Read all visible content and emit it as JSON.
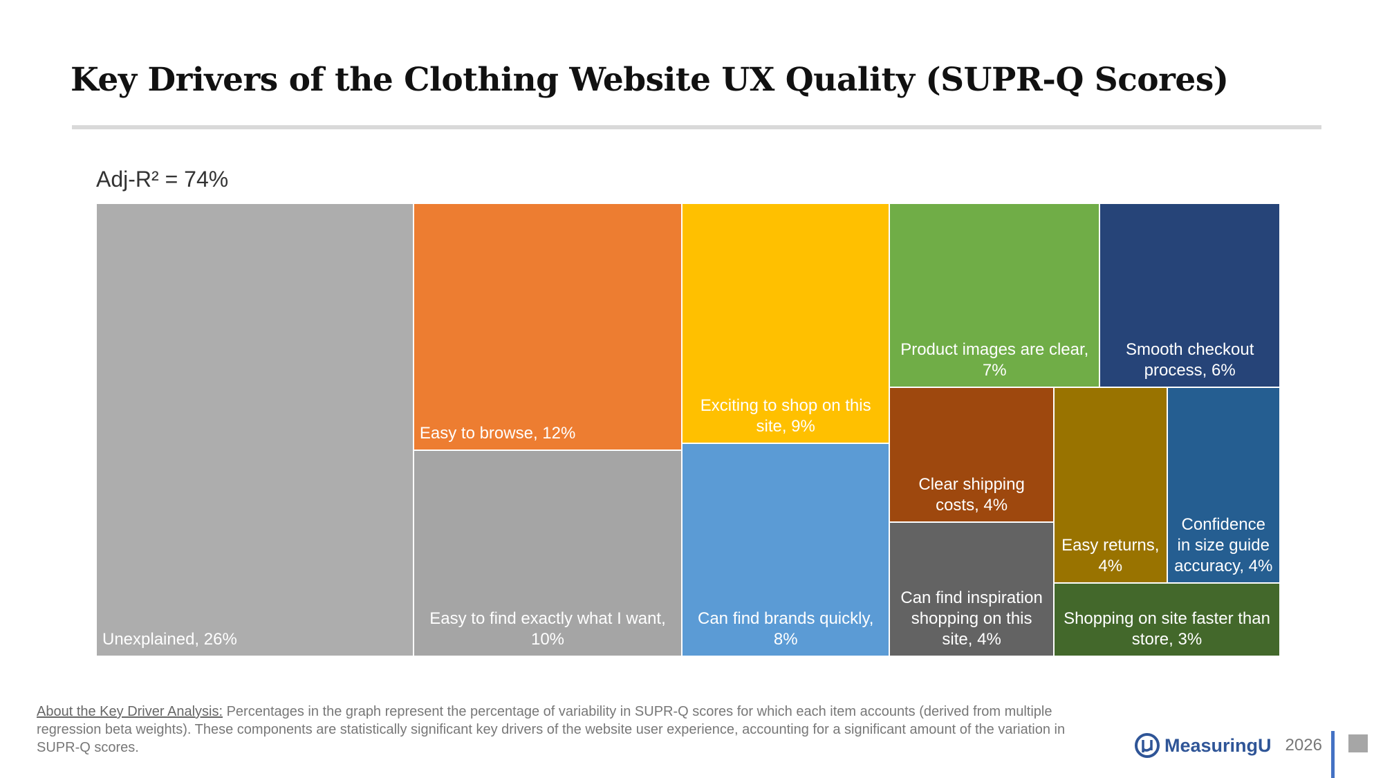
{
  "title": "Key Drivers of the Clothing Website UX Quality (SUPR-Q Scores)",
  "chart_data": {
    "type": "treemap",
    "subtitle": "Adj-R² = 74%",
    "categories": [
      "Unexplained, 26%",
      "Easy to browse, 12%",
      "Easy to find exactly what I want, 10%",
      "Exciting to shop on this site, 9%",
      "Can find brands quickly, 8%",
      "Product images are clear, 7%",
      "Smooth checkout process, 6%",
      "Clear shipping costs, 4%",
      "Can find inspiration shopping on this site, 4%",
      "Easy returns, 4%",
      "Confidence in size guide accuracy, 4%",
      "Shopping on site faster than store, 3%"
    ],
    "values": [
      26,
      12,
      10,
      9,
      8,
      7,
      6,
      4,
      4,
      4,
      4,
      3
    ],
    "colors": [
      "#adadad",
      "#ed7d31",
      "#a5a5a5",
      "#ffc000",
      "#5b9bd5",
      "#70ad47",
      "#264478",
      "#9e480e",
      "#636363",
      "#997300",
      "#255e91",
      "#43682b"
    ]
  },
  "footnote": {
    "heading": "About the Key Driver Analysis:",
    "text": " Percentages in the graph represent the percentage of variability in SUPR-Q scores for which each item accounts (derived from multiple regression beta weights). These components are statistically significant key drivers of the website user experience, accounting for a significant amount of the variation in SUPR-Q scores."
  },
  "logo": "MeasuringU",
  "year": "2026"
}
